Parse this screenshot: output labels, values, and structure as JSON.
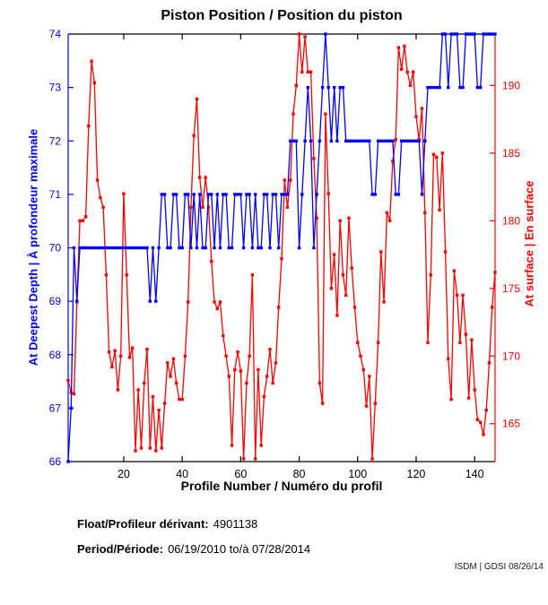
{
  "info": {
    "float_label": "Float/Profileur dérivant:",
    "float_value": "4901138",
    "period_label": "Period/Période:",
    "period_value": "06/19/2010  to/à  07/28/2014",
    "footer": "ISDM | GDSI 08/26/14"
  },
  "chart_data": {
    "type": "line",
    "title": "Piston Position / Position du piston",
    "xlabel": "Profile Number / Numéro du profil",
    "x_ticks": [
      20,
      40,
      60,
      80,
      100,
      120,
      140
    ],
    "xlim": [
      1,
      147
    ],
    "grid": false,
    "legend": "none",
    "left_axis": {
      "label": "At Deepest Depth | À profondeur maximale",
      "color": "#0000ff",
      "ticks": [
        66,
        67,
        68,
        69,
        70,
        71,
        72,
        73,
        74
      ],
      "ylim": [
        66,
        74
      ]
    },
    "right_axis": {
      "label": "At surface | En surface",
      "color": "#ff0000",
      "ticks": [
        165,
        170,
        175,
        180,
        185,
        190
      ],
      "ylim": [
        162.2,
        193.8
      ]
    },
    "series": [
      {
        "name": "surface",
        "label": "At surface | En surface",
        "axis": "right",
        "color": "#ff0000",
        "marker": "square",
        "values": [
          168.2,
          167.3,
          167.2,
          174,
          180,
          180,
          180.3,
          187,
          191.8,
          190.2,
          183,
          181.7,
          181,
          176,
          170.3,
          169.2,
          170.4,
          167.5,
          170,
          182,
          176,
          169.9,
          170.6,
          163,
          167.5,
          163.2,
          168,
          170.5,
          163.2,
          167,
          163,
          166,
          163.2,
          166.5,
          169.5,
          168.5,
          169.8,
          168,
          166.8,
          166.8,
          170,
          174,
          181,
          186.3,
          189,
          183.2,
          181,
          183.2,
          181,
          177,
          174,
          173.5,
          174,
          171.5,
          170,
          168.5,
          163.4,
          169,
          170.3,
          168.9,
          162.4,
          168,
          170,
          176,
          162.4,
          169,
          163.4,
          167,
          168.5,
          170.5,
          168,
          169.5,
          173.6,
          177.2,
          183,
          181,
          183,
          187.9,
          190,
          193.8,
          191,
          193.6,
          191,
          191,
          184.6,
          180.2,
          168,
          166.5,
          187.9,
          182,
          175,
          177.5,
          173,
          180,
          176,
          174.5,
          180.2,
          176.5,
          173.6,
          171,
          170,
          169,
          166.3,
          168.5,
          162.4,
          166.5,
          171,
          177.7,
          174,
          180.6,
          180,
          184.4,
          186,
          192.8,
          191.2,
          192.9,
          191,
          190,
          191,
          187.7,
          186,
          188.3,
          180.6,
          171,
          176,
          184.9,
          184.7,
          180.8,
          185,
          177.7,
          169.8,
          166.8,
          176.3,
          174.5,
          171,
          174.5,
          171.6,
          166.9,
          171.2,
          167.5,
          165.3,
          165.1,
          164.2,
          166,
          169.5,
          173.6,
          176.2
        ]
      },
      {
        "name": "deepest-depth",
        "label": "At Deepest Depth | À profondeur maximale",
        "axis": "left",
        "color": "#0000ff",
        "marker": "square",
        "values": [
          66,
          67,
          70,
          69,
          70,
          70,
          70,
          70,
          70,
          70,
          70,
          70,
          70,
          70,
          70,
          70,
          70,
          70,
          70,
          70,
          70,
          70,
          70,
          70,
          70,
          70,
          70,
          70,
          69,
          70,
          69,
          70,
          71,
          71,
          70,
          70,
          71,
          71,
          70,
          70,
          71,
          71,
          70,
          71,
          70,
          71,
          70,
          70,
          71,
          71,
          70,
          71,
          70,
          71,
          71,
          70,
          70,
          71,
          71,
          71,
          70,
          71,
          71,
          70,
          71,
          70,
          70,
          71,
          71,
          70,
          71,
          71,
          70,
          71,
          71,
          71,
          72,
          72,
          72,
          70,
          71,
          72,
          73,
          72,
          70,
          71,
          72,
          73,
          74,
          73,
          72,
          73,
          72,
          73,
          73,
          72,
          72,
          72,
          72,
          72,
          72,
          72,
          72,
          72,
          71,
          71,
          72,
          72,
          72,
          72,
          72,
          72,
          71,
          71,
          72,
          72,
          72,
          72,
          72,
          72,
          72,
          71,
          72,
          73,
          73,
          73,
          73,
          73,
          74,
          74,
          73,
          74,
          74,
          74,
          73,
          73,
          74,
          74,
          74,
          74,
          73,
          73,
          74,
          74,
          74,
          74,
          74
        ]
      }
    ]
  }
}
